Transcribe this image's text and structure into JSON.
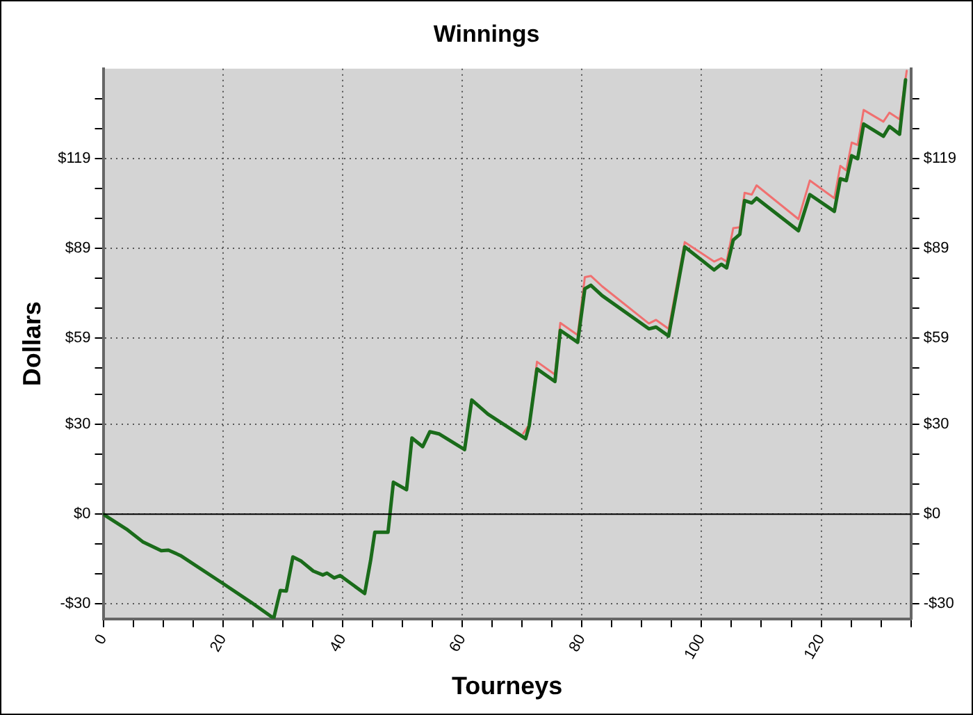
{
  "chart_data": {
    "type": "line",
    "title": "Winnings",
    "xlabel": "Tourneys",
    "ylabel": "Dollars",
    "xlim": [
      0,
      135
    ],
    "xticks": [
      0,
      {
        "value": 5,
        "label": null
      },
      {
        "value": 10,
        "label": null
      },
      {
        "value": 15,
        "label": null
      },
      20,
      {
        "value": 25,
        "label": null
      },
      {
        "value": 30,
        "label": null
      },
      {
        "value": 35,
        "label": null
      },
      40,
      {
        "value": 45,
        "label": null
      },
      {
        "value": 50,
        "label": null
      },
      {
        "value": 55,
        "label": null
      },
      60,
      {
        "value": 65,
        "label": null
      },
      {
        "value": 70,
        "label": null
      },
      {
        "value": 75,
        "label": null
      },
      80,
      {
        "value": 85,
        "label": null
      },
      {
        "value": 90,
        "label": null
      },
      {
        "value": 95,
        "label": null
      },
      100,
      {
        "value": 105,
        "label": null
      },
      {
        "value": 110,
        "label": null
      },
      {
        "value": 115,
        "label": null
      },
      120,
      {
        "value": 125,
        "label": null
      },
      {
        "value": 130,
        "label": null
      },
      {
        "value": 135,
        "label": null
      }
    ],
    "ylim": [
      -35,
      149
    ],
    "yticks": [
      {
        "value": -30,
        "label": "-$30"
      },
      {
        "value": -20,
        "label": null
      },
      {
        "value": -10,
        "label": null
      },
      {
        "value": 0,
        "label": "$0"
      },
      {
        "value": 10,
        "label": null
      },
      {
        "value": 20,
        "label": null
      },
      {
        "value": 30,
        "label": "$30"
      },
      {
        "value": 40,
        "label": null
      },
      {
        "value": 49,
        "label": null
      },
      {
        "value": 59,
        "label": "$59"
      },
      {
        "value": 69,
        "label": null
      },
      {
        "value": 79,
        "label": null
      },
      {
        "value": 89,
        "label": "$89"
      },
      {
        "value": 99,
        "label": null
      },
      {
        "value": 109,
        "label": null
      },
      {
        "value": 119,
        "label": "$119"
      },
      {
        "value": 129,
        "label": null
      },
      {
        "value": 139,
        "label": null
      }
    ],
    "y2lim": [
      -35,
      149
    ],
    "y2ticks": [
      {
        "value": -30,
        "label": "-$30"
      },
      {
        "value": -20,
        "label": null
      },
      {
        "value": -10,
        "label": null
      },
      {
        "value": 0,
        "label": "$0"
      },
      {
        "value": 10,
        "label": null
      },
      {
        "value": 20,
        "label": null
      },
      {
        "value": 30,
        "label": "$30"
      },
      {
        "value": 40,
        "label": null
      },
      {
        "value": 49,
        "label": null
      },
      {
        "value": 59,
        "label": "$59"
      },
      {
        "value": 69,
        "label": null
      },
      {
        "value": 79,
        "label": null
      },
      {
        "value": 89,
        "label": "$89"
      },
      {
        "value": 99,
        "label": null
      },
      {
        "value": 109,
        "label": null
      },
      {
        "value": 119,
        "label": "$119"
      },
      {
        "value": 129,
        "label": null
      },
      {
        "value": 139,
        "label": null
      }
    ],
    "grid": true,
    "legend": false,
    "marker": "none",
    "line_style": "solid",
    "ref_lines": [
      {
        "axis": "y",
        "value": 0,
        "color": "#000000"
      }
    ],
    "series": [
      {
        "color": "#f07070",
        "x": [
          70.2,
          71.2,
          72.5,
          75.5,
          76.4,
          79.3,
          80.5,
          81.5,
          83.4,
          91.2,
          92.4,
          94.5,
          97.2,
          102.1,
          103.3,
          104.2,
          105.3,
          106.4,
          107.2,
          108.4,
          109.2,
          116.2,
          118.1,
          122.2,
          123.2,
          124.2,
          125.1,
          126.1,
          127.1,
          130.4,
          131.4,
          133.1,
          134.3
        ],
        "values": [
          27,
          30,
          51,
          46.7,
          64,
          59.9,
          79.3,
          79.7,
          76.2,
          63.8,
          65,
          62,
          91,
          84.5,
          85.6,
          84.5,
          95.7,
          96,
          107.5,
          106.9,
          110,
          98.7,
          111.6,
          105.7,
          116.5,
          115,
          124.3,
          123.5,
          135.2,
          131.3,
          134.3,
          132.1,
          148.3
        ]
      },
      {
        "color": "#1a6b1a",
        "x": [
          0,
          3.9,
          6.6,
          9.7,
          10.9,
          12.9,
          19.9,
          24.6,
          28.5,
          29.6,
          30.6,
          31.7,
          33.1,
          35.1,
          36.7,
          37.4,
          38.6,
          39.6,
          43.7,
          44.7,
          45.4,
          47.6,
          48.5,
          50.7,
          51.6,
          53.4,
          54.6,
          56.1,
          60.4,
          61.6,
          64.3,
          70.6,
          71.2,
          72.5,
          75.5,
          76.4,
          79.3,
          80.5,
          81.5,
          83.4,
          91.2,
          92.4,
          94.5,
          97.2,
          102.1,
          103.3,
          104.2,
          105.3,
          106.4,
          107.2,
          108.4,
          109.2,
          116.2,
          118.1,
          122.2,
          123.2,
          124.2,
          125.1,
          126.1,
          127.1,
          130.4,
          131.4,
          133.1,
          134.1
        ],
        "values": [
          0,
          -5,
          -9.2,
          -12.2,
          -12,
          -13.8,
          -23,
          -29.3,
          -34.8,
          -25.5,
          -25.7,
          -14.3,
          -15.7,
          -19,
          -20.3,
          -19.7,
          -21.3,
          -20.5,
          -26.5,
          -15.4,
          -6,
          -6,
          10.7,
          8.2,
          25.5,
          22.6,
          27.6,
          26.9,
          21.6,
          38.2,
          33.5,
          25.3,
          29.6,
          48.6,
          44.4,
          61.5,
          57.5,
          75.4,
          76.6,
          73.1,
          62,
          62.6,
          59.6,
          89.4,
          81.7,
          83.6,
          82.4,
          91.7,
          93.6,
          104.9,
          104.1,
          105.7,
          94.8,
          106.9,
          101.3,
          112.2,
          111.6,
          119.9,
          118.9,
          130.5,
          126.4,
          129.7,
          127.1,
          145.3
        ]
      }
    ]
  }
}
